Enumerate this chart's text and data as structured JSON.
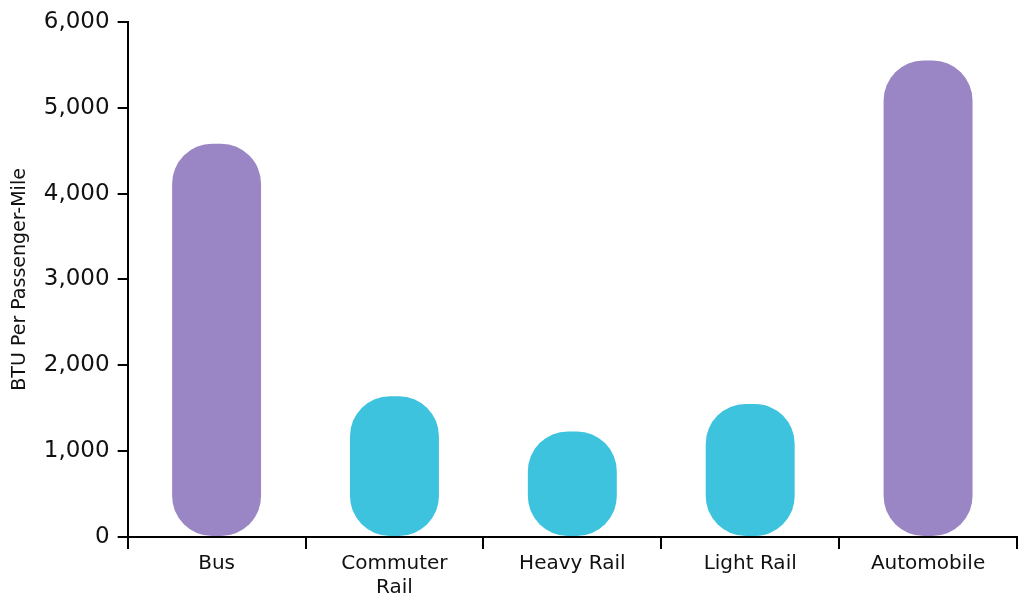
{
  "chart_data": {
    "type": "bar",
    "ylabel": "BTU Per Passenger-Mile",
    "categories": [
      "Bus",
      "Commuter Rail",
      "Heavy Rail",
      "Light Rail",
      "Automobile"
    ],
    "values": [
      4580,
      1640,
      1230,
      1550,
      5550
    ],
    "colors": [
      "#9a86c4",
      "#3ec3de",
      "#3ec3de",
      "#3ec3de",
      "#9a86c4"
    ],
    "ylim": [
      0,
      6000
    ],
    "yticks": [
      {
        "value": 0,
        "label": "0"
      },
      {
        "value": 1000,
        "label": "1,000"
      },
      {
        "value": 2000,
        "label": "2,000"
      },
      {
        "value": 3000,
        "label": "3,000"
      },
      {
        "value": 4000,
        "label": "4,000"
      },
      {
        "value": 5000,
        "label": "5,000"
      },
      {
        "value": 6000,
        "label": "6,000"
      }
    ],
    "grid": false
  }
}
